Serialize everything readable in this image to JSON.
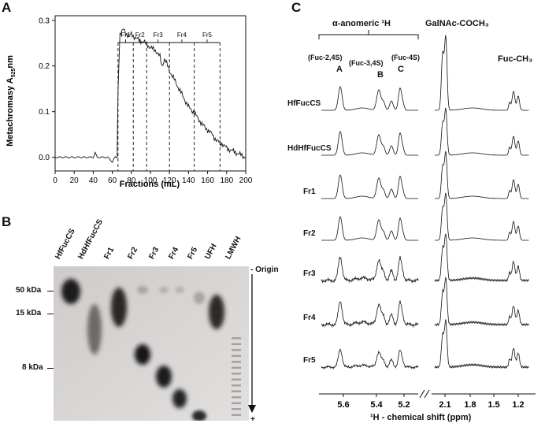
{
  "panels": {
    "a": "A",
    "b": "B",
    "c": "C"
  },
  "panel_a": {
    "ylabel": "Metachromasy A525nm",
    "ylabel_main": "Metachromasy A",
    "ylabel_sub": "525",
    "ylabel_unit": "nm",
    "xlabel": "Fractions (mL)",
    "xticks": [
      "0",
      "20",
      "40",
      "60",
      "80",
      "100",
      "120",
      "140",
      "160",
      "180",
      "200"
    ],
    "yticks": [
      "0.0",
      "0.1",
      "0.2",
      "0.3"
    ],
    "fractions": [
      "Fr1",
      "Fr2",
      "Fr3",
      "Fr4",
      "Fr5"
    ]
  },
  "chart_data": {
    "type": "line",
    "xlabel": "Fractions (mL)",
    "ylabel": "Metachromasy A525nm",
    "xlim": [
      0,
      200
    ],
    "ylim": [
      -0.03,
      0.31
    ],
    "grid": false,
    "x": [
      0,
      10,
      20,
      30,
      40,
      42,
      44,
      50,
      55,
      60,
      63,
      65,
      66,
      68,
      70,
      72,
      75,
      78,
      80,
      85,
      90,
      95,
      100,
      105,
      110,
      112,
      115,
      120,
      125,
      130,
      135,
      140,
      145,
      150,
      155,
      160,
      165,
      170,
      175,
      180,
      185,
      190,
      195,
      200
    ],
    "y": [
      0.0,
      0.0,
      0.0,
      0.0,
      0.0,
      0.01,
      0.0,
      0.0,
      0.0,
      -0.01,
      0.0,
      0.0,
      0.15,
      0.27,
      0.275,
      0.28,
      0.27,
      0.265,
      0.27,
      0.26,
      0.255,
      0.25,
      0.24,
      0.235,
      0.22,
      0.2,
      0.215,
      0.19,
      0.17,
      0.15,
      0.13,
      0.11,
      0.1,
      0.085,
      0.07,
      0.06,
      0.05,
      0.035,
      0.03,
      0.02,
      0.015,
      0.01,
      0.005,
      0.0
    ],
    "fraction_boundaries": [
      66,
      82,
      96,
      120,
      146,
      173
    ]
  },
  "panel_b": {
    "lanes": [
      "HfFucCS",
      "HdHfFucCS",
      "Fr1",
      "Fr2",
      "Fr3",
      "Fr4",
      "Fr5",
      "UFH",
      "LMWH"
    ],
    "mw_markers": [
      "50 kDa",
      "15 kDa",
      "8 kDa"
    ],
    "origin": "- Origin",
    "plus": "+"
  },
  "panel_c": {
    "header_alpha": "α-anomeric ¹H",
    "header_galnac": "GalNAc-COCH₃",
    "header_fuc": "Fuc-CH₃",
    "peak_groups": [
      {
        "name": "(Fuc-2,4S)",
        "letter": "A"
      },
      {
        "name": "(Fuc-3,4S)",
        "letter": "B"
      },
      {
        "name": "(Fuc-4S)",
        "letter": "C"
      }
    ],
    "spectra": [
      "HfFucCS",
      "HdHfFucCS",
      "Fr1",
      "Fr2",
      "Fr3",
      "Fr4",
      "Fr5"
    ],
    "xticks_left": [
      "5.6",
      "5.4",
      "5.2"
    ],
    "xticks_right": [
      "2.1",
      "1.8",
      "1.5",
      "1.2"
    ],
    "xlabel": "¹H - chemical shift (ppm)"
  }
}
